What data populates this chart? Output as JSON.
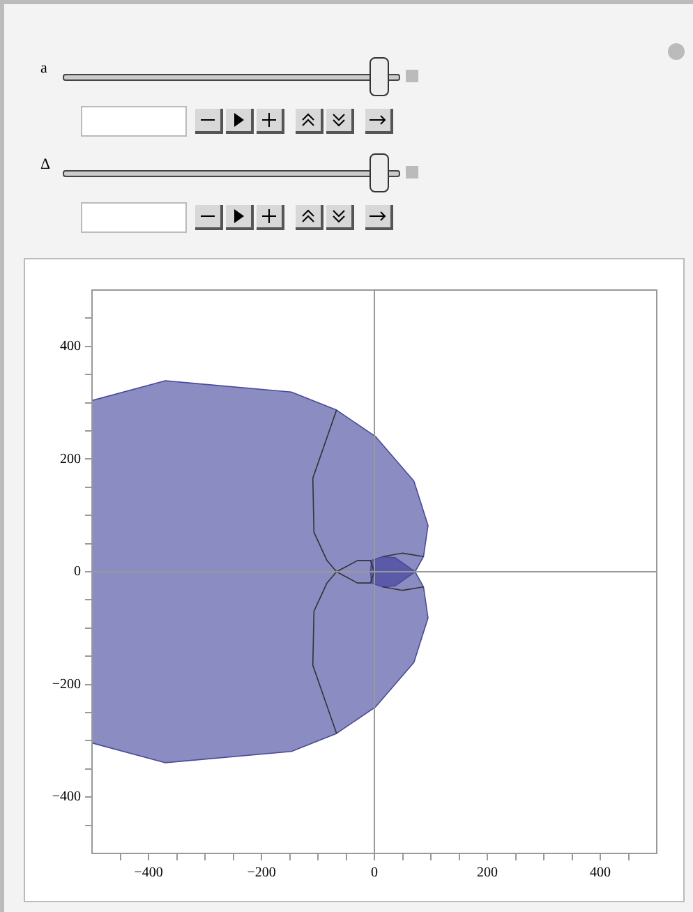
{
  "chart_data": {
    "type": "area",
    "annotations": [
      "a",
      "Δ"
    ],
    "xlim": [
      -500,
      500
    ],
    "ylim": [
      -500,
      500
    ],
    "xticks": [
      {
        "value": -450,
        "label": null
      },
      -400,
      {
        "value": -350,
        "label": null
      },
      {
        "value": -300,
        "label": null
      },
      {
        "value": -250,
        "label": null
      },
      -200,
      {
        "value": -150,
        "label": null
      },
      {
        "value": -100,
        "label": null
      },
      {
        "value": -50,
        "label": null
      },
      0,
      {
        "value": 50,
        "label": null
      },
      {
        "value": 100,
        "label": null
      },
      {
        "value": 150,
        "label": null
      },
      200,
      {
        "value": 250,
        "label": null
      },
      {
        "value": 300,
        "label": null
      },
      {
        "value": 350,
        "label": null
      },
      400,
      {
        "value": 450,
        "label": null
      }
    ],
    "yticks": [
      {
        "value": -450,
        "label": null
      },
      -400,
      {
        "value": -350,
        "label": null
      },
      {
        "value": -300,
        "label": null
      },
      {
        "value": -250,
        "label": null
      },
      -200,
      {
        "value": -150,
        "label": null
      },
      {
        "value": -100,
        "label": null
      },
      {
        "value": -50,
        "label": null
      },
      0,
      {
        "value": 50,
        "label": null
      },
      {
        "value": 100,
        "label": null
      },
      {
        "value": 150,
        "label": null
      },
      200,
      {
        "value": 250,
        "label": null
      },
      {
        "value": 300,
        "label": null
      },
      {
        "value": 350,
        "label": null
      },
      400,
      {
        "value": 450,
        "label": null
      }
    ],
    "legend": false,
    "marker": "none",
    "series": [
      {
        "type": "line",
        "color": "#333333",
        "x": [
          -67,
          -109,
          -107,
          -84,
          -67,
          -84,
          -107,
          -109,
          -67
        ],
        "values": [
          287,
          166,
          70,
          20,
          0,
          -20,
          -70,
          -166,
          -287
        ]
      },
      {
        "type": "line",
        "color": "#333333",
        "x": [
          -67,
          -30,
          -7,
          0
        ],
        "values": [
          0,
          20,
          20,
          0
        ]
      },
      {
        "type": "line",
        "color": "#333333",
        "x": [
          -67,
          -30,
          -7,
          0
        ],
        "values": [
          0,
          -20,
          -20,
          0
        ]
      },
      {
        "type": "line",
        "color": "#333333",
        "x": [
          87,
          50,
          15
        ],
        "values": [
          27,
          33,
          27
        ]
      },
      {
        "type": "line",
        "color": "#333333",
        "x": [
          87,
          50,
          15
        ],
        "values": [
          -27,
          -33,
          -27
        ]
      },
      {
        "type": "area",
        "color": "#5a5aa8",
        "x": [
          -7,
          -5,
          15,
          37,
          72,
          37,
          15,
          -5,
          -7
        ],
        "values": [
          0,
          20,
          27,
          25,
          0,
          -25,
          -27,
          -20,
          0
        ]
      },
      {
        "type": "area",
        "color": "#8b8cc2",
        "x": [
          -500,
          -370,
          -147,
          -67,
          2,
          70,
          95,
          87,
          72,
          87,
          95,
          70,
          2,
          -67,
          -147,
          -370,
          -500,
          -500
        ],
        "values": [
          304,
          339,
          319,
          287,
          240,
          161,
          82,
          27,
          0,
          -27,
          -82,
          -161,
          -240,
          -287,
          -319,
          -339,
          -304,
          304
        ]
      }
    ]
  }
}
